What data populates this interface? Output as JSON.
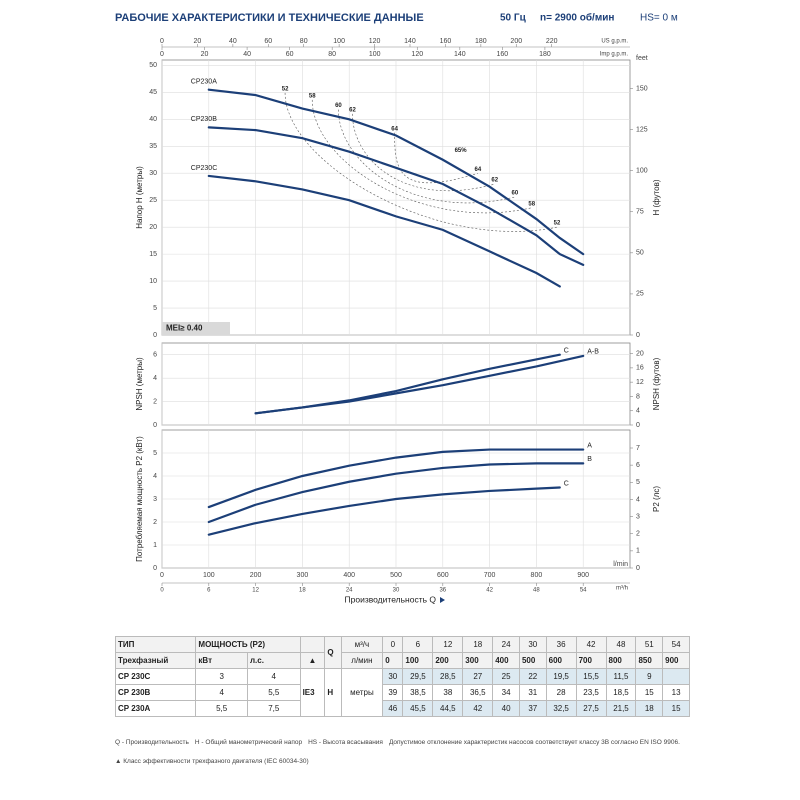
{
  "header": {
    "title": "РАБОЧИЕ ХАРАКТЕРИСТИКИ И ТЕХНИЧЕСКИЕ ДАННЫЕ",
    "freq": "50 Гц",
    "speed": "n= 2900 об/мин",
    "hs": "HS= 0 м"
  },
  "chart_data": [
    {
      "type": "line",
      "ylabel": "Напор H (метры)",
      "y2label": "H (футов)",
      "y2unit": "feet",
      "grid": true,
      "xlim": [
        0,
        1000
      ],
      "ylim": [
        0,
        51
      ],
      "yticks": [
        0,
        5,
        10,
        15,
        20,
        25,
        30,
        35,
        40,
        45,
        50
      ],
      "y2lim": [
        0,
        167.3
      ],
      "y2ticks": [
        0,
        25,
        50,
        75,
        100,
        125,
        150
      ],
      "top_axes": [
        {
          "label": "US g.p.m.",
          "lim": [
            0,
            264.2
          ],
          "ticks": [
            0,
            20,
            40,
            60,
            80,
            100,
            120,
            140,
            160,
            180,
            200,
            220
          ]
        },
        {
          "label": "Imp g.p.m.",
          "lim": [
            0,
            220
          ],
          "ticks": [
            0,
            20,
            40,
            60,
            80,
            100,
            120,
            140,
            160,
            180
          ]
        }
      ],
      "mei": "MEI≥ 0.40",
      "series": [
        {
          "name": "CP230A",
          "color": "#1c3f78",
          "x": [
            100,
            200,
            300,
            400,
            500,
            600,
            700,
            800,
            850,
            900
          ],
          "values": [
            45.5,
            44.5,
            42,
            40,
            37,
            32.5,
            27.5,
            21.5,
            18,
            15
          ]
        },
        {
          "name": "CP230B",
          "color": "#1c3f78",
          "x": [
            100,
            200,
            300,
            400,
            500,
            600,
            700,
            800,
            850,
            900
          ],
          "values": [
            38.5,
            38,
            36.5,
            34,
            31,
            28,
            23.5,
            18.5,
            15,
            13
          ]
        },
        {
          "name": "CP230C",
          "color": "#1c3f78",
          "x": [
            100,
            200,
            300,
            400,
            500,
            600,
            700,
            800,
            850
          ],
          "values": [
            29.5,
            28.5,
            27,
            25,
            22,
            19.5,
            15.5,
            11.5,
            9
          ]
        }
      ],
      "annotations": [
        {
          "text": "52",
          "x": 263,
          "y": 44.9
        },
        {
          "text": "58",
          "x": 321,
          "y": 43.6
        },
        {
          "text": "60",
          "x": 377,
          "y": 41.8
        },
        {
          "text": "62",
          "x": 407,
          "y": 41
        },
        {
          "text": "64",
          "x": 497,
          "y": 37.5
        },
        {
          "text": "65%",
          "x": 638,
          "y": 33.5
        },
        {
          "text": "64",
          "x": 675,
          "y": 30
        },
        {
          "text": "62",
          "x": 711,
          "y": 28
        },
        {
          "text": "60",
          "x": 754,
          "y": 25.6
        },
        {
          "text": "58",
          "x": 790,
          "y": 23.6
        },
        {
          "text": "52",
          "x": 844,
          "y": 20
        }
      ]
    },
    {
      "type": "line",
      "ylabel": "NPSH (метры)",
      "y2label": "NPSH (футов)",
      "grid": true,
      "xlim": [
        0,
        1000
      ],
      "ylim": [
        0,
        7
      ],
      "yticks": [
        0,
        2,
        4,
        6
      ],
      "y2lim": [
        0,
        22.97
      ],
      "y2ticks": [
        0,
        4,
        8,
        12,
        16,
        20
      ],
      "series": [
        {
          "name": "C",
          "color": "#1c3f78",
          "x": [
            200,
            300,
            400,
            500,
            600,
            700,
            850
          ],
          "values": [
            1.0,
            1.5,
            2.1,
            2.9,
            3.9,
            4.8,
            6.0
          ]
        },
        {
          "name": "A-B",
          "color": "#1c3f78",
          "x": [
            200,
            300,
            400,
            500,
            600,
            700,
            800,
            900
          ],
          "values": [
            1.0,
            1.5,
            2.0,
            2.7,
            3.4,
            4.2,
            5.0,
            5.9
          ]
        }
      ]
    },
    {
      "type": "line",
      "ylabel": "Потребляемая мощность P2 (кВт)",
      "y2label": "P2 (лс)",
      "grid": true,
      "xlim": [
        0,
        1000
      ],
      "xticks": [
        0,
        100,
        200,
        300,
        400,
        500,
        600,
        700,
        800,
        900
      ],
      "xunit": "l/min",
      "x2": {
        "label": "m³/h",
        "lim": [
          0,
          60
        ],
        "ticks": [
          0,
          6,
          12,
          18,
          24,
          30,
          36,
          42,
          48,
          54
        ]
      },
      "xlabel": "Производительность Q",
      "ylim": [
        0,
        6
      ],
      "yticks": [
        0,
        1,
        2,
        3,
        4,
        5
      ],
      "y2lim": [
        0,
        8.05
      ],
      "y2ticks": [
        0,
        1,
        2,
        3,
        4,
        5,
        6,
        7
      ],
      "series": [
        {
          "name": "A",
          "color": "#1c3f78",
          "x": [
            100,
            200,
            300,
            400,
            500,
            600,
            700,
            800,
            900
          ],
          "values": [
            2.65,
            3.4,
            4.0,
            4.45,
            4.8,
            5.05,
            5.15,
            5.15,
            5.15
          ]
        },
        {
          "name": "B",
          "color": "#1c3f78",
          "x": [
            100,
            200,
            300,
            400,
            500,
            600,
            700,
            800,
            900
          ],
          "values": [
            2.0,
            2.75,
            3.3,
            3.75,
            4.1,
            4.35,
            4.5,
            4.55,
            4.55
          ]
        },
        {
          "name": "C",
          "color": "#1c3f78",
          "x": [
            100,
            200,
            300,
            400,
            500,
            600,
            700,
            800,
            850
          ],
          "values": [
            1.45,
            1.95,
            2.35,
            2.7,
            3.0,
            3.2,
            3.35,
            3.45,
            3.5
          ]
        }
      ]
    }
  ],
  "table": {
    "header": {
      "type": "ТИП",
      "power": "МОЩНОСТЬ (P2)",
      "q": "Q",
      "q_unit_m3": "м³/ч",
      "phase": "Трехфазный",
      "kw": "кВт",
      "hp": "л.с.",
      "motor_mark": "▲",
      "q_unit_l": "л/мин",
      "ie": "IE3",
      "h": "H",
      "h_unit": "метры"
    },
    "q_m3": [
      "0",
      "6",
      "12",
      "18",
      "24",
      "30",
      "36",
      "42",
      "48",
      "51",
      "54"
    ],
    "q_l": [
      "0",
      "100",
      "200",
      "300",
      "400",
      "500",
      "600",
      "700",
      "800",
      "850",
      "900"
    ],
    "rows": [
      {
        "model": "CP 230C",
        "kw": "3",
        "hp": "4",
        "h": [
          "30",
          "29,5",
          "28,5",
          "27",
          "25",
          "22",
          "19,5",
          "15,5",
          "11,5",
          "9",
          null
        ]
      },
      {
        "model": "CP 230B",
        "kw": "4",
        "hp": "5,5",
        "h": [
          "39",
          "38,5",
          "38",
          "36,5",
          "34",
          "31",
          "28",
          "23,5",
          "18,5",
          "15",
          "13"
        ]
      },
      {
        "model": "CP 230A",
        "kw": "5,5",
        "hp": "7,5",
        "h": [
          "46",
          "45,5",
          "44,5",
          "42",
          "40",
          "37",
          "32,5",
          "27,5",
          "21,5",
          "18",
          "15"
        ]
      }
    ]
  },
  "notes": [
    "Q - Производительность",
    "H - Общий манометрический напор",
    "HS - Высота всасывания",
    "Допустимое отклонение характеристик насосов соответствует классу 3B согласно EN ISO 9906.",
    "▲ Класс эффективности трехфазного двигателя (IEC 60034-30)"
  ]
}
